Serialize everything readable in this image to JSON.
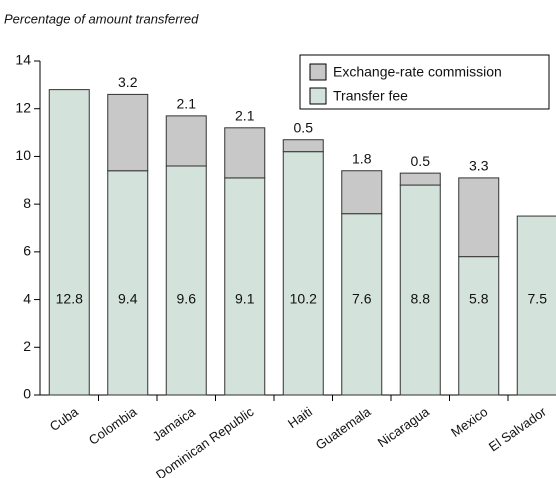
{
  "chart_data": {
    "type": "stacked_bar",
    "title": "Percentage of amount transferred",
    "categories": [
      "Cuba",
      "Colombia",
      "Jamaica",
      "Dominican Republic",
      "Haiti",
      "Guatemala",
      "Nicaragua",
      "Mexico",
      "El Salvador"
    ],
    "series": [
      {
        "name": "Transfer fee",
        "color": "#d3e2da",
        "values": [
          12.8,
          9.4,
          9.6,
          9.1,
          10.2,
          7.6,
          8.8,
          5.8,
          7.5
        ]
      },
      {
        "name": "Exchange-rate commission",
        "color": "#c8c8c8",
        "values": [
          null,
          3.2,
          2.1,
          2.1,
          0.5,
          1.8,
          0.5,
          3.3,
          null
        ]
      }
    ],
    "ylim": [
      0,
      14
    ],
    "yticks": [
      0,
      2,
      4,
      6,
      8,
      10,
      12,
      14
    ],
    "legend": "top-right"
  }
}
